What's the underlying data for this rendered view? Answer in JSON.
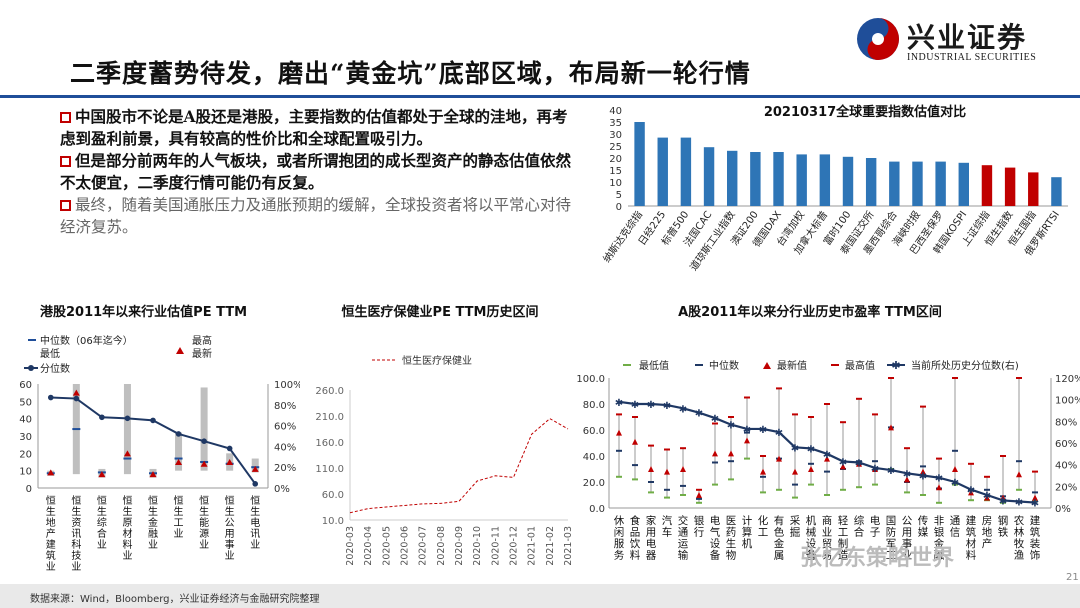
{
  "slide": {
    "title": "二季度蓄势待发，磨出“黄金坑”底部区域，布局新一轮行情",
    "logo_main": "兴业证券",
    "logo_sub": "INDUSTRIAL SECURITIES",
    "bullets": [
      "中国股市不论是A股还是港股，主要指数的估值都处于全球的洼地，再考虑到盈利前景，具有较高的性价比和全球配置吸引力。",
      "但是部分前两年的人气板块，或者所谓抱团的成长型资产的静态估值依然不太便宜，二季度行情可能仍有反复。",
      "最终，随着美国通胀压力及通胀预期的缓解，全球投资者将以平常心对待经济复苏。"
    ],
    "footer": "数据来源：Wind，Bloomberg，兴业证券经济与金融研究院整理",
    "watermark": "张忆东策略世界",
    "page_number": "21"
  },
  "chart_data": [
    {
      "id": "global-index-pe",
      "type": "bar",
      "title": "20210317全球重要指数估值对比",
      "categories": [
        "纳斯达克综指",
        "日经225",
        "标普500",
        "法国CAC",
        "道琼斯工业指数",
        "澳证200",
        "德国DAX",
        "台湾加权",
        "加拿大标普",
        "富时100",
        "泰国证交所",
        "墨西哥综合",
        "海峡时报",
        "巴西圣保罗",
        "韩国KOSPI",
        "上证综指",
        "恒生指数",
        "恒生国指",
        "俄罗斯RTSI"
      ],
      "values": [
        35,
        28.5,
        28.5,
        24.5,
        23,
        22.5,
        22.5,
        21.5,
        21.5,
        20.5,
        20,
        18.5,
        18.5,
        18.5,
        18,
        17,
        16,
        14,
        12
      ],
      "highlight": [
        false,
        false,
        false,
        false,
        false,
        false,
        false,
        false,
        false,
        false,
        false,
        false,
        false,
        false,
        false,
        true,
        true,
        true,
        false
      ],
      "ylim": [
        0,
        40
      ],
      "yticks": [
        0,
        5,
        10,
        15,
        20,
        25,
        30,
        35,
        40
      ],
      "colors": {
        "default": "#2e75b6",
        "highlight": "#c00000"
      }
    },
    {
      "id": "hk-industry-pe",
      "type": "bar",
      "title": "港股2011年以来行业估值PE TTM",
      "legend": [
        "中位数（06年迄今）",
        "最高",
        "最低",
        "最新",
        "分位数"
      ],
      "categories": [
        "恒生地产建筑业",
        "恒生资讯科技业",
        "恒生综合业",
        "恒生原材料业",
        "恒生金融业",
        "恒生工业",
        "恒生能源业",
        "恒生公用事业",
        "恒生电讯业"
      ],
      "low": [
        7,
        8,
        6,
        8,
        6,
        10,
        10,
        10,
        9
      ],
      "high": [
        10,
        60,
        11,
        60,
        11,
        32,
        58,
        20,
        17
      ],
      "median": [
        8.5,
        34,
        9,
        17,
        8.5,
        17,
        15,
        14,
        12
      ],
      "latest": [
        9,
        55,
        8,
        20,
        8,
        15,
        14,
        15,
        11
      ],
      "percentile": [
        0.87,
        0.86,
        0.68,
        0.67,
        0.65,
        0.52,
        0.45,
        0.38,
        0.04
      ],
      "ylim": [
        0,
        60
      ],
      "yticks": [
        0,
        10,
        20,
        30,
        40,
        50,
        60
      ],
      "y2ticks": [
        "0%",
        "20%",
        "40%",
        "60%",
        "80%",
        "100%"
      ]
    },
    {
      "id": "hs-healthcare-pe",
      "type": "line",
      "title": "恒生医疗保健业PE TTM历史区间",
      "series": [
        {
          "name": "恒生医疗保健业",
          "x": [
            "2020-03",
            "2020-04",
            "2020-05",
            "2020-06",
            "2020-07",
            "2020-08",
            "2020-09",
            "2020-10",
            "2020-11",
            "2020-12",
            "2021-01",
            "2021-02",
            "2021-03"
          ],
          "values": [
            24,
            32,
            35,
            38,
            41,
            42,
            46,
            85,
            95,
            92,
            175,
            205,
            185
          ]
        }
      ],
      "ylim": [
        10,
        260
      ],
      "yticks": [
        "10.0",
        "60.0",
        "110.0",
        "160.0",
        "210.0",
        "260.0"
      ]
    },
    {
      "id": "a-share-industry-pe",
      "type": "scatter",
      "title": "A股2011年以来分行业历史市盈率 TTM区间",
      "legend": [
        "最低值",
        "中位数",
        "最新值",
        "最高值",
        "当前所处历史分位数(右)"
      ],
      "categories": [
        "休闲服务",
        "食品饮料",
        "家用电器",
        "汽车",
        "交通运输",
        "银行",
        "电气设备",
        "医药生物",
        "计算机",
        "化工",
        "有色金属",
        "采掘",
        "机械设备",
        "商业贸易",
        "轻工制造",
        "综合",
        "电子",
        "国防军工",
        "公用事业",
        "传媒",
        "非银金融",
        "通信",
        "建筑材料",
        "房地产",
        "钢铁",
        "农林牧渔",
        "建筑装饰"
      ],
      "low": [
        24,
        22,
        12,
        8,
        10,
        4,
        18,
        22,
        38,
        12,
        14,
        8,
        18,
        10,
        14,
        16,
        18,
        30,
        12,
        10,
        4,
        18,
        6,
        6,
        4,
        14,
        5
      ],
      "median": [
        44,
        33,
        20,
        14,
        17,
        7,
        35,
        36,
        58,
        24,
        38,
        18,
        34,
        28,
        30,
        36,
        36,
        62,
        20,
        32,
        15,
        44,
        14,
        14,
        9,
        36,
        12
      ],
      "latest": [
        58,
        51,
        30,
        28,
        30,
        10,
        42,
        42,
        52,
        28,
        38,
        28,
        30,
        38,
        32,
        34,
        30,
        62,
        22,
        28,
        16,
        30,
        12,
        8,
        8,
        26,
        8
      ],
      "high": [
        72,
        70,
        48,
        45,
        46,
        14,
        65,
        70,
        85,
        40,
        92,
        72,
        70,
        80,
        66,
        84,
        72,
        110,
        46,
        78,
        38,
        100,
        34,
        24,
        40,
        102,
        28
      ],
      "percentile": [
        0.98,
        0.96,
        0.96,
        0.95,
        0.92,
        0.88,
        0.83,
        0.77,
        0.73,
        0.73,
        0.7,
        0.56,
        0.55,
        0.5,
        0.43,
        0.42,
        0.37,
        0.35,
        0.32,
        0.3,
        0.28,
        0.24,
        0.17,
        0.12,
        0.07,
        0.06,
        0.05
      ],
      "ylim": [
        0,
        100
      ],
      "yticks": [
        "0.0",
        "20.0",
        "40.0",
        "60.0",
        "80.0",
        "100.0"
      ],
      "y2ticks": [
        "0%",
        "20%",
        "40%",
        "60%",
        "80%",
        "100%",
        "120%"
      ]
    }
  ]
}
